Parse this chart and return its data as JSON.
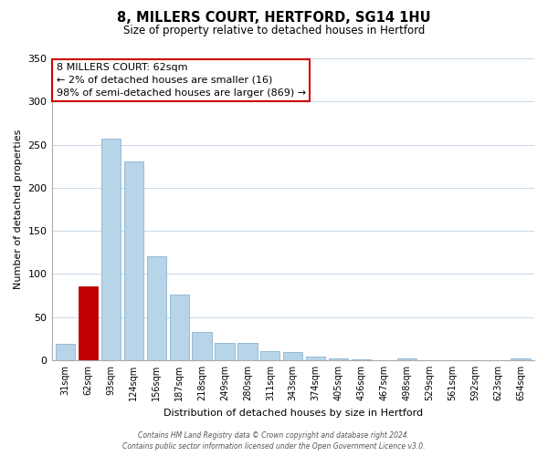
{
  "title": "8, MILLERS COURT, HERTFORD, SG14 1HU",
  "subtitle": "Size of property relative to detached houses in Hertford",
  "xlabel": "Distribution of detached houses by size in Hertford",
  "ylabel": "Number of detached properties",
  "categories": [
    "31sqm",
    "62sqm",
    "93sqm",
    "124sqm",
    "156sqm",
    "187sqm",
    "218sqm",
    "249sqm",
    "280sqm",
    "311sqm",
    "343sqm",
    "374sqm",
    "405sqm",
    "436sqm",
    "467sqm",
    "498sqm",
    "529sqm",
    "561sqm",
    "592sqm",
    "623sqm",
    "654sqm"
  ],
  "values": [
    19,
    86,
    257,
    230,
    121,
    76,
    33,
    20,
    20,
    11,
    9,
    4,
    2,
    1,
    0,
    2,
    0,
    0,
    0,
    0,
    2
  ],
  "bar_color_default": "#b8d4e8",
  "bar_color_highlight": "#c00000",
  "highlight_index": 1,
  "ylim": [
    0,
    350
  ],
  "yticks": [
    0,
    50,
    100,
    150,
    200,
    250,
    300,
    350
  ],
  "annotation_title": "8 MILLERS COURT: 62sqm",
  "annotation_line1": "← 2% of detached houses are smaller (16)",
  "annotation_line2": "98% of semi-detached houses are larger (869) →",
  "footer_line1": "Contains HM Land Registry data © Crown copyright and database right 2024.",
  "footer_line2": "Contains public sector information licensed under the Open Government Licence v3.0.",
  "background_color": "#ffffff",
  "grid_color": "#c8d8e8"
}
